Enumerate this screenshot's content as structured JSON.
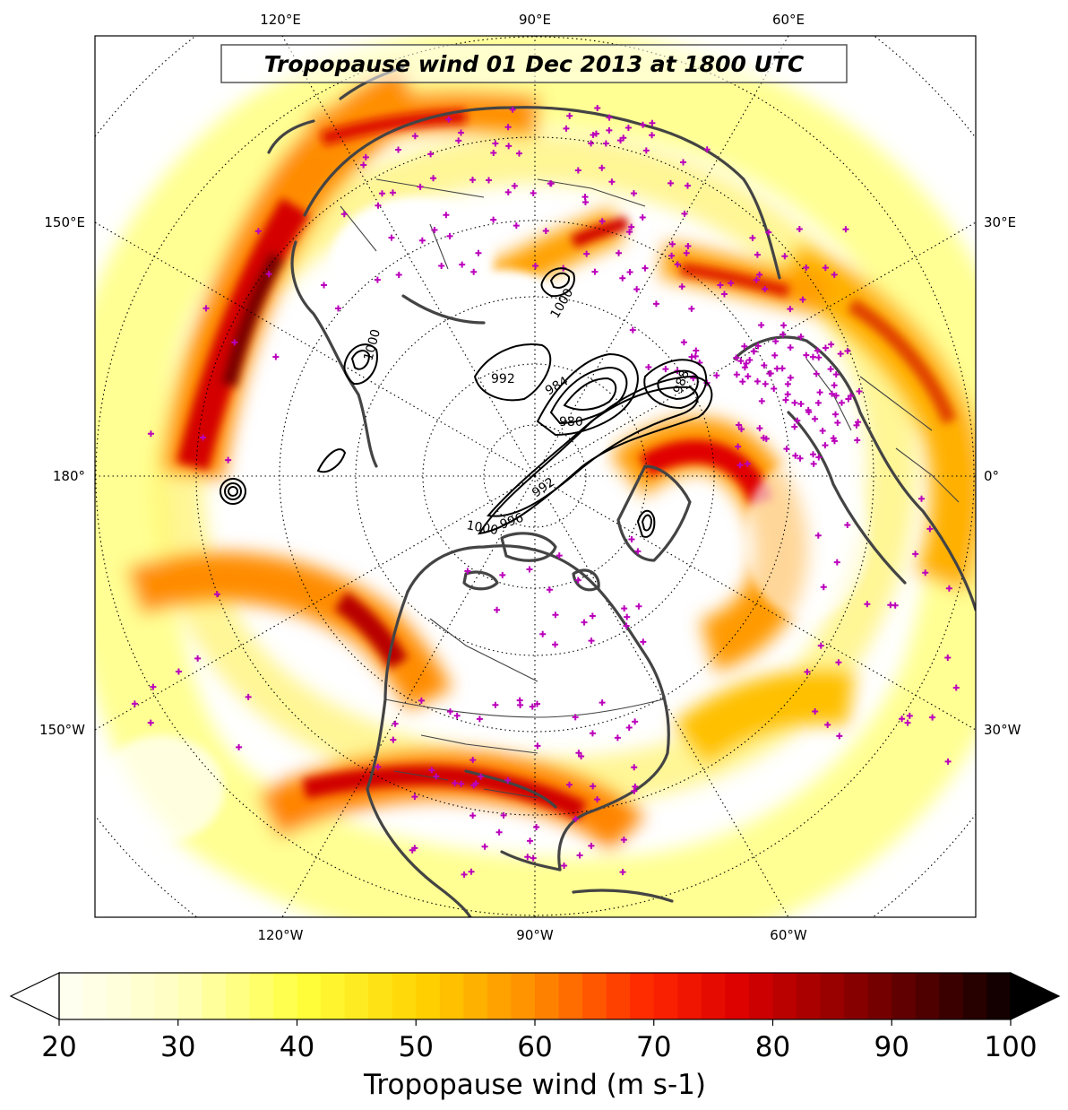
{
  "title": "Tropopause wind 01 Dec 2013 at 1800 UTC",
  "top_labels": [
    "120°E",
    "90°E",
    "60°E"
  ],
  "bottom_labels": [
    "120°W",
    "90°W",
    "60°W"
  ],
  "left_labels": [
    "150°E",
    "180°",
    "150°W"
  ],
  "right_labels": [
    "30°E",
    "0°",
    "30°W"
  ],
  "contour_labels": [
    "1000",
    "1000",
    "992",
    "984",
    "980",
    "988",
    "992",
    "996",
    "1000"
  ],
  "colorbar": {
    "label": "Tropopause wind (m s-1)",
    "ticks": [
      "20",
      "30",
      "40",
      "50",
      "60",
      "70",
      "80",
      "90",
      "100"
    ],
    "min": 20,
    "max": 100,
    "step": 2
  },
  "colors": {
    "coast": "#444444",
    "station_marker": "#bb00bb",
    "contour": "#000000"
  }
}
